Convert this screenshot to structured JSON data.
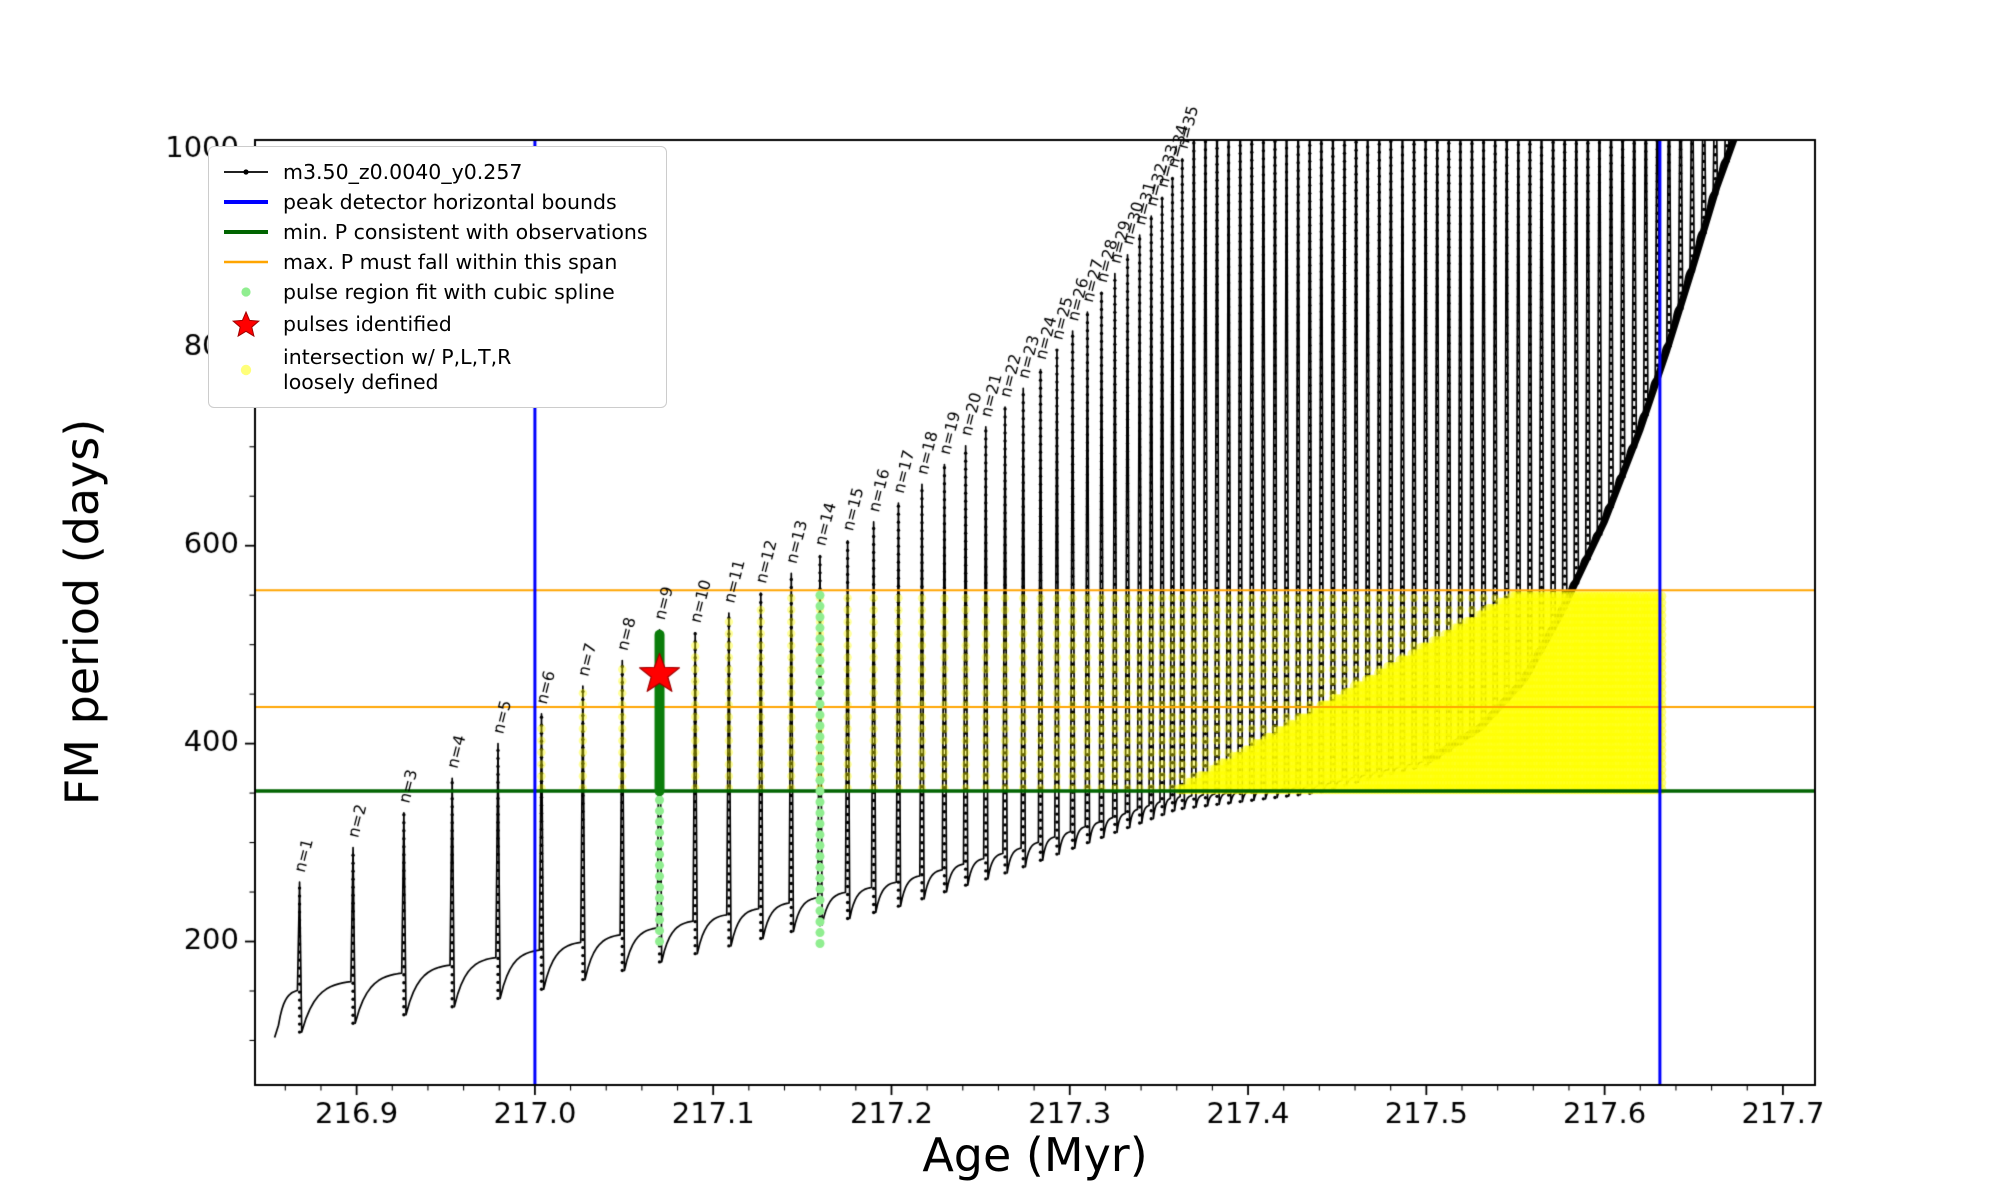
{
  "figure": {
    "background": "#ffffff",
    "xlabel": "Age (Myr)",
    "ylabel": "FM period (days)"
  },
  "legend": {
    "entries": [
      {
        "marker": "line-dot",
        "color": "#000000",
        "label": "m3.50_z0.0040_y0.257"
      },
      {
        "marker": "thick-line",
        "color": "#0000ff",
        "label": "peak detector horizontal bounds"
      },
      {
        "marker": "thick-line",
        "color": "#006400",
        "label": "min. P consistent with observations"
      },
      {
        "marker": "thin-line",
        "color": "#ffa500",
        "label": "max. P must fall within this span"
      },
      {
        "marker": "dot",
        "color": "#90ee90",
        "label": "pulse region fit with cubic spline"
      },
      {
        "marker": "star",
        "color": "#ff0000",
        "label": "pulses identified"
      },
      {
        "marker": "dot",
        "color": "#ffff4d",
        "label": "intersection w/ P,L,T,R\nloosely defined"
      }
    ]
  },
  "chart_data": {
    "type": "line",
    "title": "",
    "xlabel": "Age (Myr)",
    "ylabel": "FM period (days)",
    "xlim": [
      216.843,
      217.718
    ],
    "ylim": [
      55,
      1010
    ],
    "x_ticks": [
      216.9,
      217.0,
      217.1,
      217.2,
      217.3,
      217.4,
      217.5,
      217.6,
      217.7
    ],
    "x_tick_labels": [
      "216.9",
      "217.0",
      "217.1",
      "217.2",
      "217.3",
      "217.4",
      "217.5",
      "217.6",
      "217.7"
    ],
    "x_minor_step": 0.02,
    "y_ticks": [
      200,
      400,
      600,
      800,
      1000
    ],
    "y_tick_labels": [
      "200",
      "400",
      "600",
      "800",
      "1000"
    ],
    "y_minor_step": 50,
    "series_label": "m3.50_z0.0040_y0.257",
    "series_color": "#000000",
    "pulse_label_prefix": "n=",
    "pulses": [
      {
        "n": 1,
        "x": 216.868,
        "p": 260
      },
      {
        "n": 2,
        "x": 216.898,
        "p": 295
      },
      {
        "n": 3,
        "x": 216.9265,
        "p": 330
      },
      {
        "n": 4,
        "x": 216.9536,
        "p": 365
      },
      {
        "n": 5,
        "x": 216.9793,
        "p": 400
      },
      {
        "n": 6,
        "x": 217.0037,
        "p": 430
      },
      {
        "n": 7,
        "x": 217.0269,
        "p": 458
      },
      {
        "n": 8,
        "x": 217.049,
        "p": 484
      },
      {
        "n": 9,
        "x": 217.0699,
        "p": 515
      },
      {
        "n": 10,
        "x": 217.0899,
        "p": 512
      },
      {
        "n": 11,
        "x": 217.1088,
        "p": 532
      },
      {
        "n": 12,
        "x": 217.1267,
        "p": 552
      },
      {
        "n": 13,
        "x": 217.1438,
        "p": 572
      },
      {
        "n": 14,
        "x": 217.1599,
        "p": 590
      },
      {
        "n": 15,
        "x": 217.1754,
        "p": 605
      },
      {
        "n": 16,
        "x": 217.19,
        "p": 624
      },
      {
        "n": 17,
        "x": 217.2039,
        "p": 643
      },
      {
        "n": 18,
        "x": 217.2171,
        "p": 662
      },
      {
        "n": 19,
        "x": 217.2297,
        "p": 682
      },
      {
        "n": 20,
        "x": 217.2416,
        "p": 701
      },
      {
        "n": 21,
        "x": 217.2529,
        "p": 720
      },
      {
        "n": 22,
        "x": 217.2637,
        "p": 740
      },
      {
        "n": 23,
        "x": 217.2739,
        "p": 759
      },
      {
        "n": 24,
        "x": 217.2836,
        "p": 778
      },
      {
        "n": 25,
        "x": 217.2928,
        "p": 798
      },
      {
        "n": 26,
        "x": 217.3016,
        "p": 817
      },
      {
        "n": 27,
        "x": 217.3099,
        "p": 836
      },
      {
        "n": 28,
        "x": 217.3178,
        "p": 856
      },
      {
        "n": 29,
        "x": 217.3253,
        "p": 875
      },
      {
        "n": 30,
        "x": 217.3324,
        "p": 894
      },
      {
        "n": 31,
        "x": 217.3392,
        "p": 914
      },
      {
        "n": 32,
        "x": 217.3457,
        "p": 933
      },
      {
        "n": 33,
        "x": 217.3518,
        "p": 952
      },
      {
        "n": 34,
        "x": 217.3576,
        "p": 972
      },
      {
        "n": 35,
        "x": 217.3631,
        "p": 991
      }
    ],
    "extra_pulse_x": [
      217.3696,
      217.3761,
      217.3826,
      217.3891,
      217.3956,
      217.4021,
      217.4086,
      217.4151,
      217.4216,
      217.4281,
      217.4346,
      217.4411,
      217.4476,
      217.4541,
      217.4606,
      217.4671,
      217.4736,
      217.4801,
      217.4866,
      217.4931,
      217.4996,
      217.5061,
      217.5126,
      217.5191,
      217.5256,
      217.5321,
      217.5386,
      217.5451,
      217.5516,
      217.5581,
      217.5646,
      217.5711,
      217.5776,
      217.5841,
      217.5906,
      217.5971,
      217.6036,
      217.6101,
      217.6166,
      217.6231,
      217.6296,
      217.6361,
      217.6426,
      217.6491,
      217.6556,
      217.6621,
      217.6686,
      217.6751
    ],
    "extra_pulse_peak": 1120,
    "base_envelope": [
      [
        216.843,
        143
      ],
      [
        217.0,
        190
      ],
      [
        217.1,
        224
      ],
      [
        217.2,
        258
      ],
      [
        217.27,
        292
      ],
      [
        217.32,
        322
      ],
      [
        217.36,
        346
      ],
      [
        217.44,
        357
      ],
      [
        217.5,
        382
      ],
      [
        217.53,
        416
      ],
      [
        217.555,
        465
      ],
      [
        217.575,
        530
      ],
      [
        217.6,
        625
      ],
      [
        217.62,
        718
      ],
      [
        217.635,
        798
      ],
      [
        217.65,
        885
      ],
      [
        217.663,
        963
      ],
      [
        217.672,
        1008
      ],
      [
        217.682,
        1052
      ]
    ],
    "overlays": {
      "vlines": [
        {
          "x": 217.0,
          "color": "#0000ff",
          "lw": 3
        },
        {
          "x": 217.631,
          "color": "#0000ff",
          "lw": 3
        }
      ],
      "hlines": [
        {
          "y": 352,
          "color": "#006400",
          "lw": 3.5
        },
        {
          "y": 437,
          "color": "#ffa500",
          "lw": 2
        },
        {
          "y": 555,
          "color": "#ffa500",
          "lw": 2
        }
      ],
      "yellow_band": {
        "x_start": 217.358,
        "x_end": 217.633,
        "y_bottom": 352,
        "y_top": 555,
        "ramp_end_x": 217.553,
        "color": "#ffff00"
      },
      "spline_columns": [
        {
          "x": 217.0699,
          "y0": 200,
          "y1": 350
        },
        {
          "x": 217.1599,
          "y0": 198,
          "y1": 560
        }
      ],
      "spline_color": "#90ee90",
      "green_bar": {
        "x": 217.0699,
        "y0": 352,
        "y1": 510,
        "color": "#0a7d0a"
      },
      "star": {
        "x": 217.0699,
        "y": 470,
        "color": "#ff0000",
        "edge": "#a00000"
      }
    }
  }
}
